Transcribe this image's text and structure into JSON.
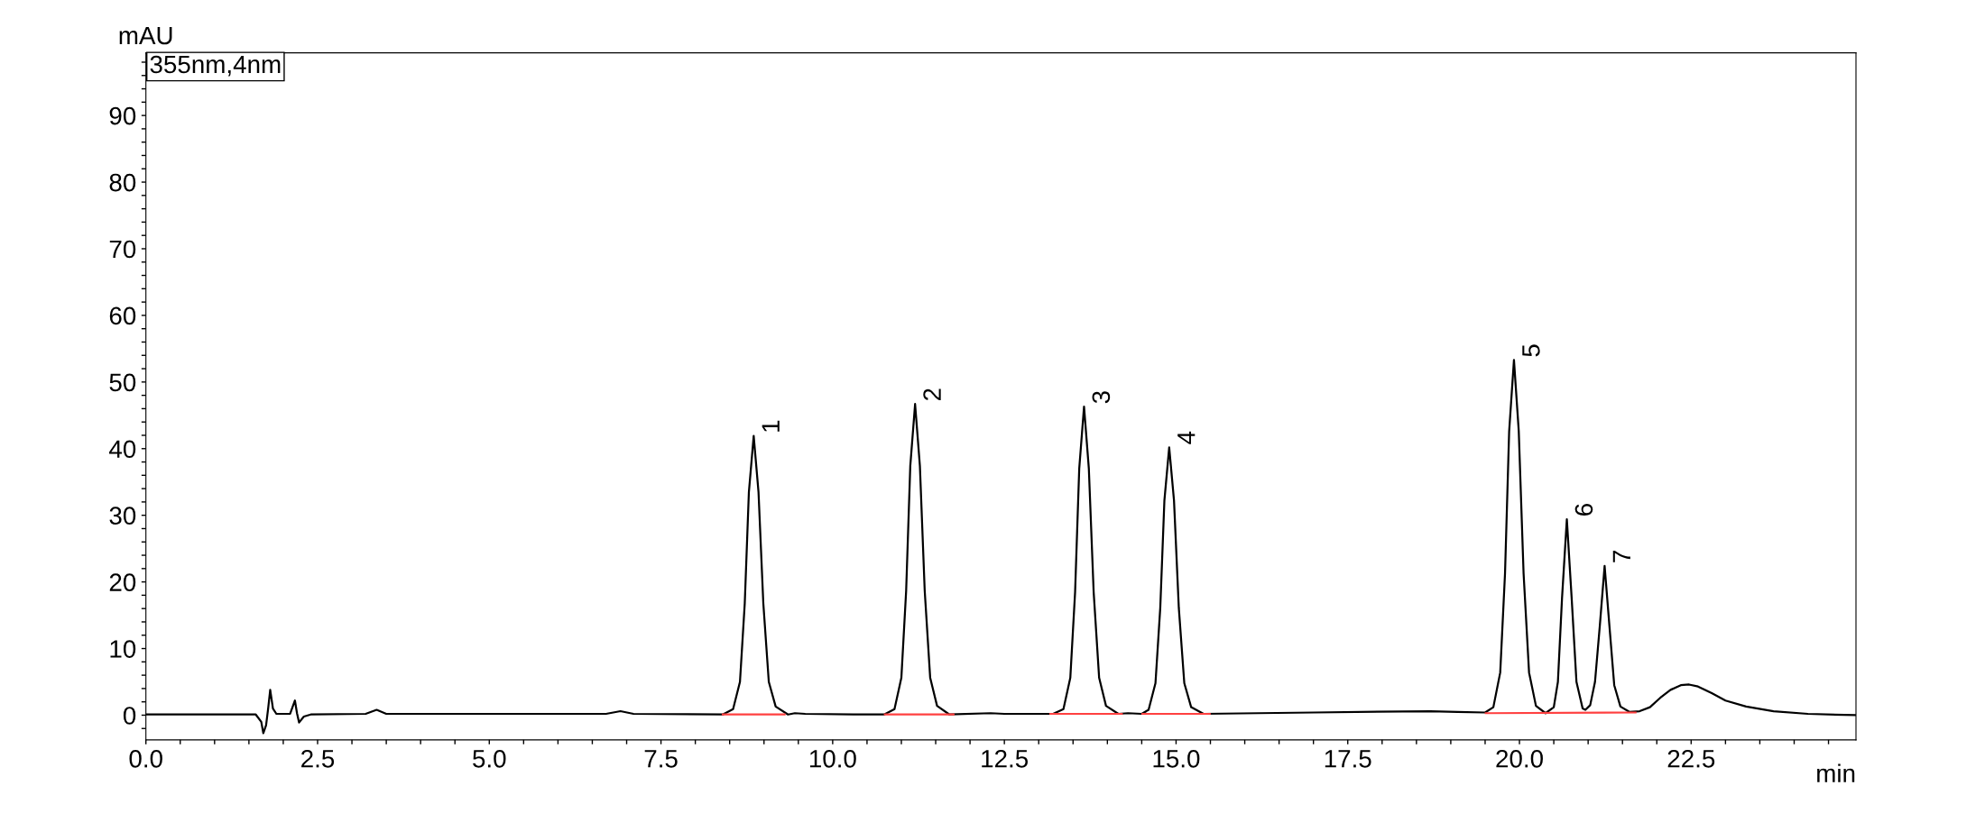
{
  "chart_data": {
    "type": "line",
    "xlabel": "min",
    "ylabel": "mAU",
    "xlim": [
      0,
      24.9
    ],
    "ylim": [
      -3.7,
      99.4
    ],
    "xticks": [
      {
        "value": 0,
        "label": "0.0"
      },
      {
        "value": 0.5,
        "label": null
      },
      {
        "value": 1,
        "label": null
      },
      {
        "value": 1.5,
        "label": null
      },
      {
        "value": 2,
        "label": null
      },
      {
        "value": 2.5,
        "label": "2.5"
      },
      {
        "value": 3,
        "label": null
      },
      {
        "value": 3.5,
        "label": null
      },
      {
        "value": 4,
        "label": null
      },
      {
        "value": 4.5,
        "label": null
      },
      {
        "value": 5,
        "label": "5.0"
      },
      {
        "value": 5.5,
        "label": null
      },
      {
        "value": 6,
        "label": null
      },
      {
        "value": 6.5,
        "label": null
      },
      {
        "value": 7,
        "label": null
      },
      {
        "value": 7.5,
        "label": "7.5"
      },
      {
        "value": 8,
        "label": null
      },
      {
        "value": 8.5,
        "label": null
      },
      {
        "value": 9,
        "label": null
      },
      {
        "value": 9.5,
        "label": null
      },
      {
        "value": 10,
        "label": "10.0"
      },
      {
        "value": 10.5,
        "label": null
      },
      {
        "value": 11,
        "label": null
      },
      {
        "value": 11.5,
        "label": null
      },
      {
        "value": 12,
        "label": null
      },
      {
        "value": 12.5,
        "label": "12.5"
      },
      {
        "value": 13,
        "label": null
      },
      {
        "value": 13.5,
        "label": null
      },
      {
        "value": 14,
        "label": null
      },
      {
        "value": 14.5,
        "label": null
      },
      {
        "value": 15,
        "label": "15.0"
      },
      {
        "value": 15.5,
        "label": null
      },
      {
        "value": 16,
        "label": null
      },
      {
        "value": 16.5,
        "label": null
      },
      {
        "value": 17,
        "label": null
      },
      {
        "value": 17.5,
        "label": "17.5"
      },
      {
        "value": 18,
        "label": null
      },
      {
        "value": 18.5,
        "label": null
      },
      {
        "value": 19,
        "label": null
      },
      {
        "value": 19.5,
        "label": null
      },
      {
        "value": 20,
        "label": "20.0"
      },
      {
        "value": 20.5,
        "label": null
      },
      {
        "value": 21,
        "label": null
      },
      {
        "value": 21.5,
        "label": null
      },
      {
        "value": 22,
        "label": null
      },
      {
        "value": 22.5,
        "label": "22.5"
      },
      {
        "value": 23,
        "label": null
      },
      {
        "value": 23.5,
        "label": null
      },
      {
        "value": 24,
        "label": null
      },
      {
        "value": 24.5,
        "label": null
      }
    ],
    "yticks": [
      {
        "value": -2,
        "label": null
      },
      0,
      {
        "value": 2,
        "label": null
      },
      {
        "value": 4,
        "label": null
      },
      {
        "value": 6,
        "label": null
      },
      {
        "value": 8,
        "label": null
      },
      10,
      {
        "value": 12,
        "label": null
      },
      {
        "value": 14,
        "label": null
      },
      {
        "value": 16,
        "label": null
      },
      {
        "value": 18,
        "label": null
      },
      20,
      {
        "value": 22,
        "label": null
      },
      {
        "value": 24,
        "label": null
      },
      {
        "value": 26,
        "label": null
      },
      {
        "value": 28,
        "label": null
      },
      30,
      {
        "value": 32,
        "label": null
      },
      {
        "value": 34,
        "label": null
      },
      {
        "value": 36,
        "label": null
      },
      {
        "value": 38,
        "label": null
      },
      40,
      {
        "value": 42,
        "label": null
      },
      {
        "value": 44,
        "label": null
      },
      {
        "value": 46,
        "label": null
      },
      {
        "value": 48,
        "label": null
      },
      50,
      {
        "value": 52,
        "label": null
      },
      {
        "value": 54,
        "label": null
      },
      {
        "value": 56,
        "label": null
      },
      {
        "value": 58,
        "label": null
      },
      60,
      {
        "value": 62,
        "label": null
      },
      {
        "value": 64,
        "label": null
      },
      {
        "value": 66,
        "label": null
      },
      {
        "value": 68,
        "label": null
      },
      70,
      {
        "value": 72,
        "label": null
      },
      {
        "value": 74,
        "label": null
      },
      {
        "value": 76,
        "label": null
      },
      {
        "value": 78,
        "label": null
      },
      80,
      {
        "value": 82,
        "label": null
      },
      {
        "value": 84,
        "label": null
      },
      {
        "value": 86,
        "label": null
      },
      {
        "value": 88,
        "label": null
      },
      90,
      {
        "value": 92,
        "label": null
      },
      {
        "value": 94,
        "label": null
      },
      {
        "value": 96,
        "label": null
      },
      {
        "value": 98,
        "label": null
      }
    ],
    "grid": false,
    "legend": false,
    "marker": "none",
    "line_style": "solid",
    "series": [
      {
        "color": "#000000",
        "x": [
          0,
          1.6,
          1.68,
          1.71,
          1.75,
          1.78,
          1.81,
          1.85,
          1.9,
          2.1,
          2.17,
          2.2,
          2.23,
          2.3,
          2.4,
          3.2,
          3.36,
          3.5,
          6.7,
          6.91,
          7.1,
          8.4,
          8.55,
          8.65,
          8.72,
          8.78,
          8.85,
          8.92,
          8.99,
          9.07,
          9.17,
          9.35,
          9.45,
          9.6,
          10.3,
          10.75,
          10.9,
          11.0,
          11.07,
          11.13,
          11.2,
          11.27,
          11.34,
          11.42,
          11.52,
          11.7,
          12.3,
          12.5,
          13.21,
          13.36,
          13.46,
          13.53,
          13.59,
          13.66,
          13.73,
          13.8,
          13.88,
          13.98,
          14.16,
          14.3,
          14.5,
          14.6,
          14.7,
          14.77,
          14.83,
          14.9,
          14.97,
          15.04,
          15.12,
          15.22,
          15.4,
          17.0,
          18.7,
          19.1,
          19.5,
          19.62,
          19.72,
          19.79,
          19.85,
          19.92,
          19.99,
          20.06,
          20.14,
          20.24,
          20.38,
          20.5,
          20.56,
          20.62,
          20.69,
          20.76,
          20.83,
          20.92,
          20.96,
          21.03,
          21.1,
          21.17,
          21.24,
          21.31,
          21.38,
          21.47,
          21.6,
          21.75,
          21.9,
          22.05,
          22.2,
          22.35,
          22.47,
          22.6,
          22.8,
          23.0,
          23.3,
          23.7,
          24.2,
          24.9
        ],
        "values": [
          0.1,
          0.1,
          -1.0,
          -2.7,
          -1.5,
          1.0,
          3.8,
          1.0,
          0.2,
          0.2,
          2.2,
          0.3,
          -1.1,
          -0.2,
          0.1,
          0.2,
          0.8,
          0.2,
          0.2,
          0.6,
          0.2,
          0.1,
          0.9,
          5.0,
          16.8,
          33.5,
          41.9,
          33.5,
          16.8,
          5.0,
          1.3,
          0.1,
          0.3,
          0.2,
          0.1,
          0.1,
          0.9,
          5.6,
          18.7,
          37.4,
          46.7,
          37.4,
          18.7,
          5.6,
          1.4,
          0.1,
          0.3,
          0.2,
          0.2,
          0.9,
          5.6,
          18.5,
          37.0,
          46.3,
          37.0,
          18.5,
          5.6,
          1.4,
          0.2,
          0.3,
          0.2,
          0.8,
          4.8,
          16.1,
          32.2,
          40.2,
          32.2,
          16.1,
          4.8,
          1.2,
          0.2,
          0.4,
          0.6,
          0.5,
          0.4,
          1.2,
          6.4,
          21.3,
          42.6,
          53.3,
          42.6,
          21.3,
          6.4,
          1.4,
          0.3,
          1.2,
          5.0,
          17.6,
          29.4,
          17.6,
          5.0,
          1.0,
          0.8,
          1.5,
          5.0,
          13.4,
          22.4,
          13.4,
          4.5,
          1.3,
          0.5,
          0.6,
          1.2,
          2.6,
          3.8,
          4.5,
          4.6,
          4.3,
          3.3,
          2.2,
          1.3,
          0.6,
          0.2,
          0.0
        ]
      },
      {
        "color": "#ff4040",
        "x": [
          8.4,
          9.3,
          9.31,
          10.76,
          11.76,
          11.77,
          13.17,
          14.21,
          14.22,
          14.51,
          15.49,
          15.5,
          19.51,
          21.69
        ],
        "values": [
          0.1,
          0.1,
          null,
          0.1,
          0.1,
          null,
          0.2,
          0.2,
          null,
          0.2,
          0.2,
          null,
          0.3,
          0.4
        ]
      }
    ],
    "annotations": [
      "355nm,4nm",
      {
        "text": "1",
        "x": 8.85,
        "y": 41.9
      },
      {
        "text": "2",
        "x": 11.2,
        "y": 46.7
      },
      {
        "text": "3",
        "x": 13.66,
        "y": 46.3
      },
      {
        "text": "4",
        "x": 14.9,
        "y": 40.2
      },
      {
        "text": "5",
        "x": 19.92,
        "y": 53.3
      },
      {
        "text": "6",
        "x": 20.69,
        "y": 29.4
      },
      {
        "text": "7",
        "x": 21.24,
        "y": 22.4
      }
    ]
  }
}
